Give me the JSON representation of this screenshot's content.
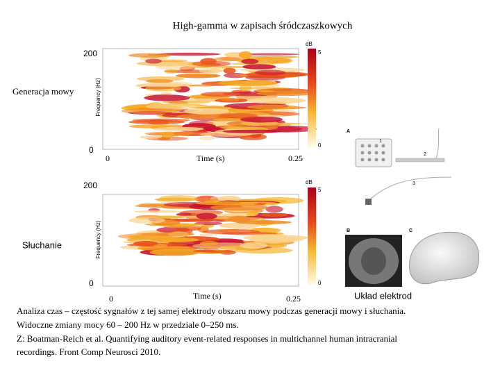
{
  "title": "High-gamma w zapisach śródczaszkowych",
  "panels": [
    {
      "label": "Generacja mowy",
      "y_top": "200",
      "y_bottom": "0",
      "x_left": "0",
      "x_label": "Time (s)",
      "x_right": "0.25",
      "y_axis_label": "Frequency (Hz)",
      "colorbar_unit": "dB",
      "colorbar_max": "5",
      "colorbar_min": "0"
    },
    {
      "label": "Słuchanie",
      "y_top": "200",
      "y_bottom": "0",
      "x_left": "0",
      "x_label": "Time (s)",
      "x_right": "0.25",
      "y_axis_label": "Frequency (Hz)",
      "colorbar_unit": "dB",
      "colorbar_max": "5",
      "colorbar_min": "0"
    }
  ],
  "electrodes": {
    "caption": "Układ elektrod",
    "panel_labels": [
      "A",
      "B",
      "C"
    ],
    "electrode_labels": [
      "1",
      "2",
      "3"
    ]
  },
  "caption": [
    "Analiza czas – częstość sygnałów z tej samej elektrody obszaru mowy podczas generacji mowy i słuchania.",
    "Widoczne zmiany mocy 60 – 200 Hz w przedziale 0–250 ms.",
    "Z: Boatman-Reich et al. Quantifying auditory event-related responses in multichannel human intracranial",
    "recordings. Front Comp Neurosci 2010."
  ]
}
